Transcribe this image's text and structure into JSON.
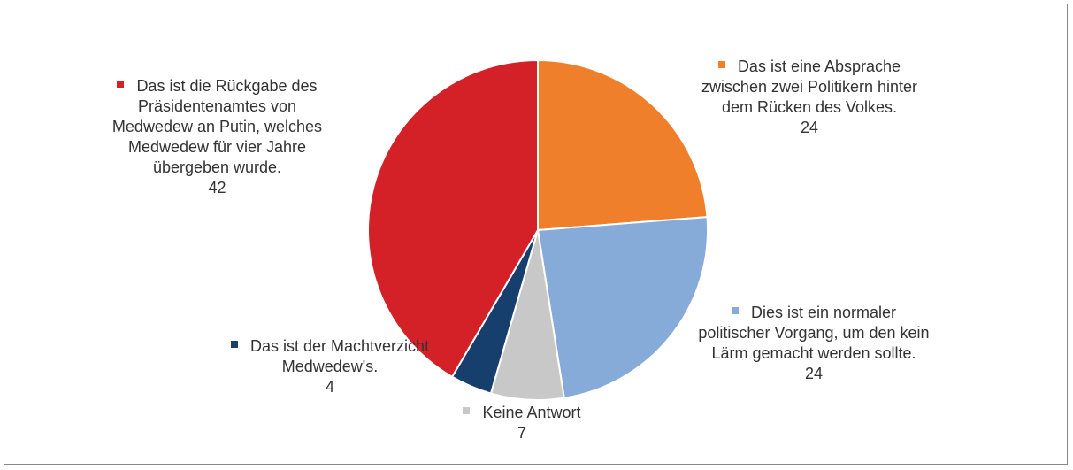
{
  "chart_data": {
    "type": "pie",
    "categories": [
      "Das ist eine Absprache zwischen zwei Politikern hinter dem Rücken des Volkes.",
      "Dies ist ein normaler politischer Vorgang, um den kein Lärm gemacht werden sollte.",
      "Keine Antwort",
      "Das ist der Machtverzicht Medwedew's.",
      "Das ist die Rückgabe des Präsidentenamtes von Medwedew an Putin, welches Medwedew für vier Jahre übergeben wurde."
    ],
    "values": [
      24,
      24,
      7,
      4,
      42
    ],
    "colors": [
      "#f07f2b",
      "#86abd9",
      "#c8c8c8",
      "#173f6e",
      "#d42027"
    ]
  }
}
